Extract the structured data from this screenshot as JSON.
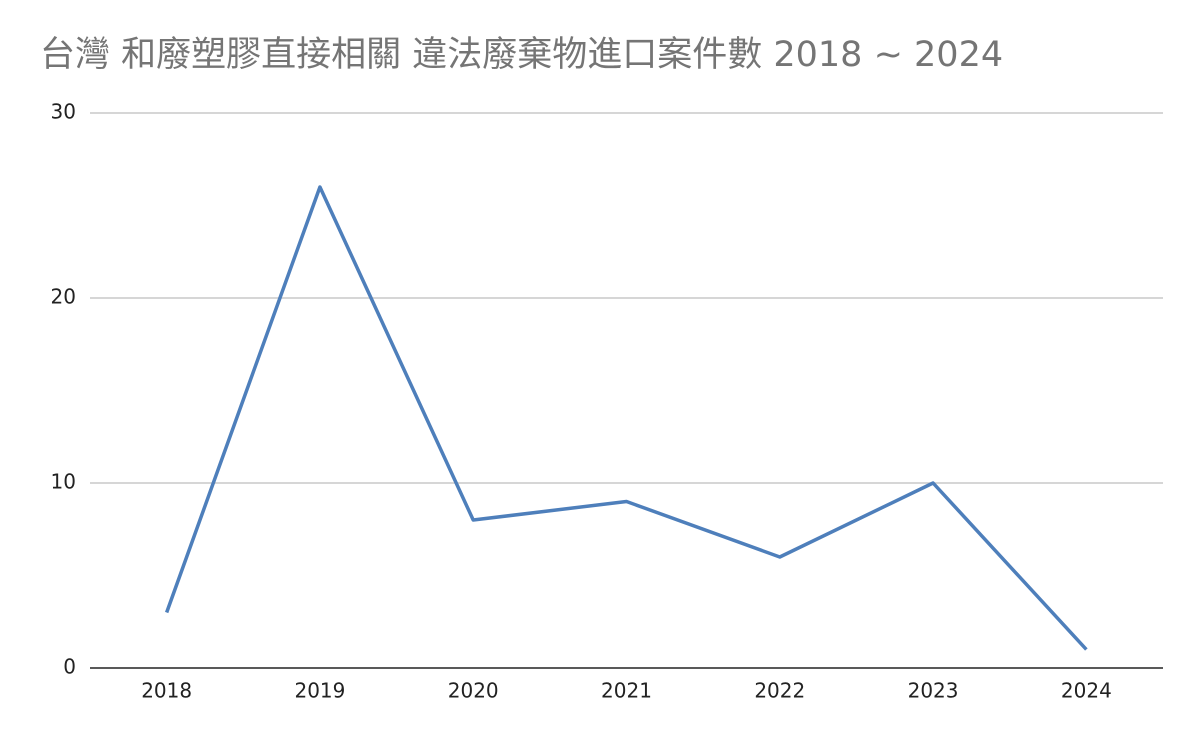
{
  "chart_data": {
    "type": "line",
    "title": "台灣 和廢塑膠直接相關 違法廢棄物進口案件數 2018 ~ 2024",
    "categories": [
      "2018",
      "2019",
      "2020",
      "2021",
      "2022",
      "2023",
      "2024"
    ],
    "series": [
      {
        "color": "#4e7fbb",
        "values": [
          3,
          26,
          8,
          9,
          6,
          10,
          1
        ]
      }
    ],
    "ylim": [
      0,
      30
    ],
    "yticks": [
      0,
      10,
      20,
      30
    ],
    "grid": true
  }
}
